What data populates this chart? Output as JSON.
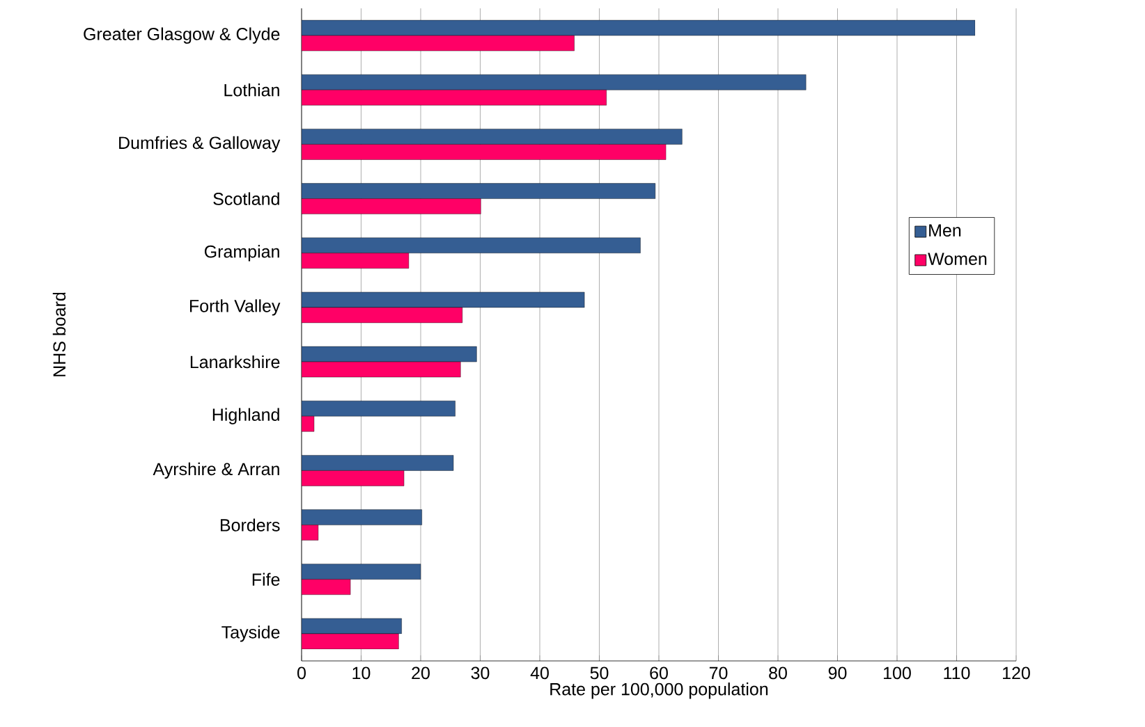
{
  "chart_data": {
    "type": "bar",
    "orientation": "horizontal",
    "xlabel": "Rate per 100,000 population",
    "ylabel": "NHS board",
    "categories": [
      "Greater Glasgow & Clyde",
      "Lothian",
      "Dumfries & Galloway",
      "Scotland",
      "Grampian",
      "Forth Valley",
      "Lanarkshire",
      "Highland",
      "Ayrshire & Arran",
      "Borders",
      "Fife",
      "Tayside"
    ],
    "series": [
      {
        "name": "Men",
        "color": "#355e93",
        "values": [
          113.1,
          84.7,
          63.9,
          59.4,
          56.9,
          47.5,
          29.4,
          25.8,
          25.5,
          20.2,
          20.0,
          16.8
        ]
      },
      {
        "name": "Women",
        "color": "#ff0066",
        "values": [
          45.8,
          51.2,
          61.2,
          30.1,
          18.0,
          27.0,
          26.7,
          2.1,
          17.2,
          2.8,
          8.2,
          16.3
        ]
      }
    ],
    "xlim": [
      0,
      120
    ],
    "xticks": [
      0,
      10,
      20,
      30,
      40,
      50,
      60,
      70,
      80,
      90,
      100,
      110,
      120
    ],
    "grid": "x",
    "legend": "right"
  }
}
